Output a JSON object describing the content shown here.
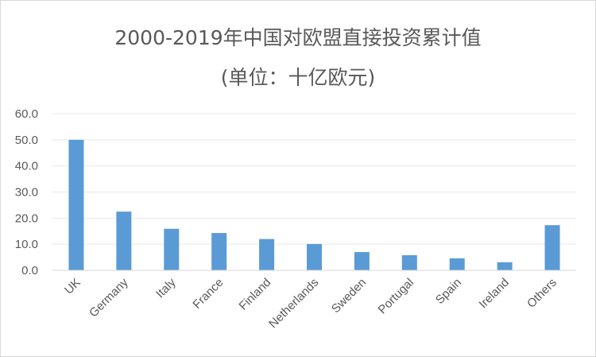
{
  "chart_data": {
    "type": "bar",
    "title": "2000-2019年中国对欧盟直接投资累计值",
    "subtitle": "(单位：十亿欧元)",
    "categories": [
      "UK",
      "Germany",
      "Italy",
      "France",
      "Finland",
      "Netherlands",
      "Sweden",
      "Portugal",
      "Spain",
      "Ireland",
      "Others"
    ],
    "values": [
      50.0,
      22.5,
      15.9,
      14.3,
      12.0,
      10.1,
      7.0,
      5.8,
      4.6,
      3.1,
      17.3
    ],
    "ylim": [
      0,
      60
    ],
    "yticks": [
      "0.0",
      "10.0",
      "20.0",
      "30.0",
      "40.0",
      "50.0",
      "60.0"
    ],
    "bar_color": "#5b9bd5",
    "grid": true,
    "legend": "none"
  }
}
